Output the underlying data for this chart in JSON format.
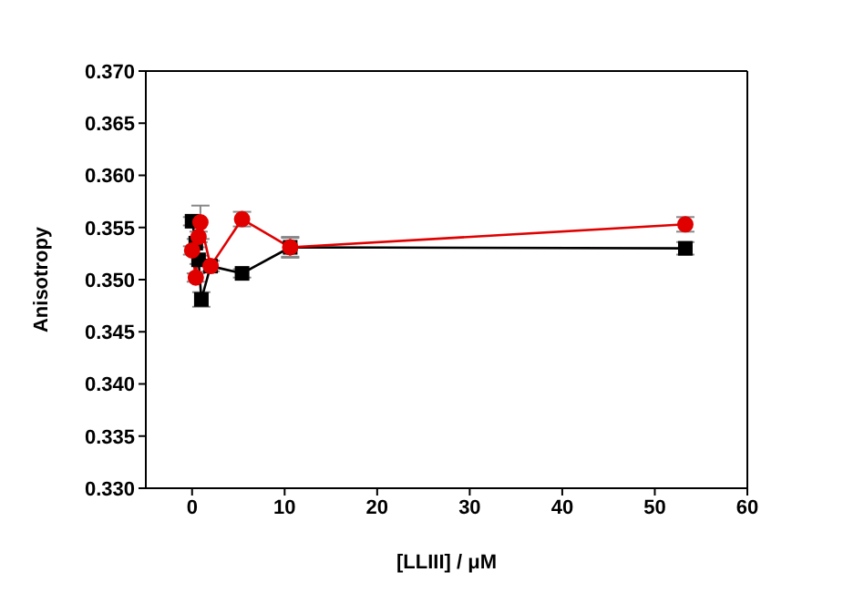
{
  "chart_data": {
    "type": "line",
    "xlabel": "[LLIII] / μM",
    "ylabel": "Anisotropy",
    "xlim": [
      -5,
      60
    ],
    "xticks": [
      0,
      10,
      20,
      30,
      40,
      50,
      60
    ],
    "ylim": [
      0.33,
      0.37
    ],
    "yticks": [
      {
        "value": 0.33,
        "label": "0.330"
      },
      {
        "value": 0.335,
        "label": "0.335"
      },
      {
        "value": 0.34,
        "label": "0.340"
      },
      {
        "value": 0.345,
        "label": "0.345"
      },
      {
        "value": 0.35,
        "label": "0.350"
      },
      {
        "value": 0.355,
        "label": "0.355"
      },
      {
        "value": 0.36,
        "label": "0.360"
      },
      {
        "value": 0.365,
        "label": "0.365"
      },
      {
        "value": 0.37,
        "label": "0.370"
      }
    ],
    "line_style": "solid",
    "series": [
      {
        "color": "#000000",
        "marker": "square",
        "x": [
          0,
          0.4,
          0.7,
          1,
          2,
          5.4,
          10.6,
          53.3
        ],
        "values": [
          0.3556,
          0.3535,
          0.3519,
          0.3481,
          0.3513,
          0.3506,
          0.3531,
          0.353
        ],
        "errors": [
          0.0004,
          0.0004,
          0.0004,
          0.0007,
          0.0005,
          0.0004,
          0.001,
          0.0006
        ]
      },
      {
        "color": "#e00000",
        "marker": "circle",
        "x": [
          0,
          0.4,
          0.7,
          0.9,
          2,
          5.4,
          10.6,
          53.3
        ],
        "values": [
          0.3528,
          0.3502,
          0.3541,
          0.3555,
          0.3513,
          0.3558,
          0.3531,
          0.3553
        ],
        "errors": [
          0.0004,
          0.0004,
          0.0005,
          0.0016,
          null,
          0.0007,
          0.0009,
          0.0007
        ]
      }
    ]
  }
}
